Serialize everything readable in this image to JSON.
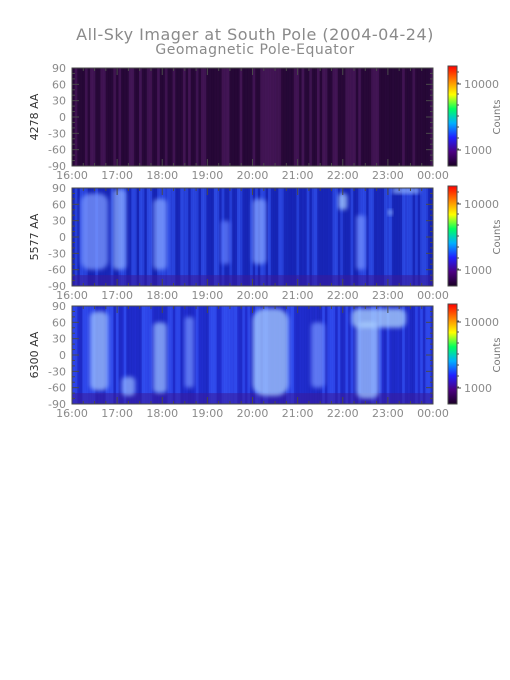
{
  "chart_data": {
    "type": "heatmap",
    "title": "All-Sky Imager at South Pole (2004-04-24)",
    "subtitle": "Geomagnetic Pole-Equator",
    "x_tick_labels": [
      "16:00",
      "17:00",
      "18:00",
      "19:00",
      "20:00",
      "21:00",
      "22:00",
      "23:00",
      "00:00"
    ],
    "x_range_hours": [
      16,
      24
    ],
    "y_tick_labels": [
      "90",
      "60",
      "30",
      "0",
      "-30",
      "-60",
      "-90"
    ],
    "y_range": [
      -90,
      90
    ],
    "colorbar": {
      "label": "Counts",
      "tick_labels": [
        "10000",
        "1000"
      ],
      "scale": "log",
      "colors": [
        "#1a0026",
        "#4b0082",
        "#2020ff",
        "#00b0ff",
        "#00ff60",
        "#ffff00",
        "#ff8000",
        "#ff0000"
      ]
    },
    "panels": [
      {
        "name": "4278 AA",
        "background": "#2f0a3e",
        "intensity_level": "low",
        "bright_regions": []
      },
      {
        "name": "5577 AA",
        "background": "#1a2ac0",
        "intensity_level": "medium",
        "bright_regions": [
          {
            "x": [
              16.2,
              16.8
            ],
            "y": [
              -60,
              80
            ],
            "level": 0.55
          },
          {
            "x": [
              16.9,
              17.2
            ],
            "y": [
              -60,
              88
            ],
            "level": 0.65
          },
          {
            "x": [
              17.8,
              18.1
            ],
            "y": [
              -60,
              70
            ],
            "level": 0.6
          },
          {
            "x": [
              19.3,
              19.5
            ],
            "y": [
              -50,
              30
            ],
            "level": 0.4
          },
          {
            "x": [
              20.0,
              20.3
            ],
            "y": [
              -50,
              70
            ],
            "level": 0.6
          },
          {
            "x": [
              21.9,
              22.1
            ],
            "y": [
              50,
              80
            ],
            "level": 0.85
          },
          {
            "x": [
              22.3,
              22.5
            ],
            "y": [
              -60,
              40
            ],
            "level": 0.5
          },
          {
            "x": [
              23.0,
              23.1
            ],
            "y": [
              40,
              50
            ],
            "level": 0.8
          },
          {
            "x": [
              23.1,
              23.7
            ],
            "y": [
              80,
              90
            ],
            "level": 0.75
          }
        ]
      },
      {
        "name": "6300 AA",
        "background": "#2431d8",
        "intensity_level": "high",
        "bright_regions": [
          {
            "x": [
              16.4,
              16.8
            ],
            "y": [
              -65,
              80
            ],
            "level": 0.8
          },
          {
            "x": [
              17.1,
              17.4
            ],
            "y": [
              -75,
              -40
            ],
            "level": 0.7
          },
          {
            "x": [
              17.8,
              18.1
            ],
            "y": [
              -70,
              60
            ],
            "level": 0.75
          },
          {
            "x": [
              18.5,
              18.7
            ],
            "y": [
              -60,
              70
            ],
            "level": 0.5
          },
          {
            "x": [
              20.0,
              20.8
            ],
            "y": [
              -75,
              85
            ],
            "level": 0.85
          },
          {
            "x": [
              21.3,
              21.6
            ],
            "y": [
              -60,
              60
            ],
            "level": 0.5
          },
          {
            "x": [
              22.3,
              22.8
            ],
            "y": [
              -80,
              60
            ],
            "level": 0.8
          },
          {
            "x": [
              22.2,
              23.4
            ],
            "y": [
              50,
              85
            ],
            "level": 0.9
          }
        ]
      }
    ]
  }
}
